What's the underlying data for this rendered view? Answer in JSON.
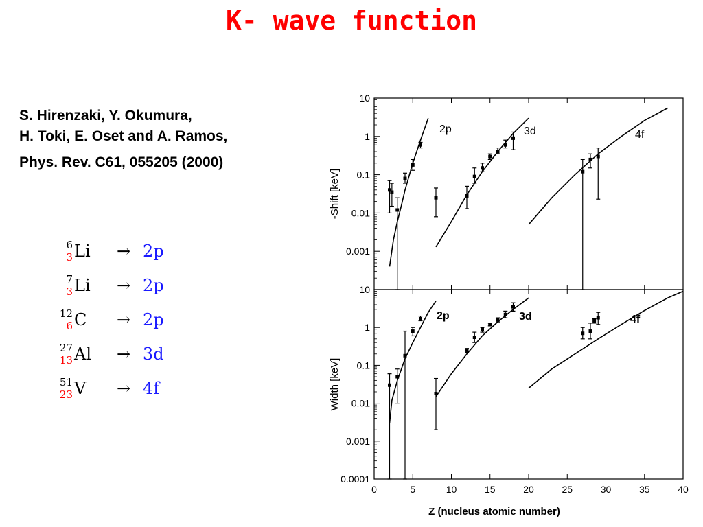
{
  "title": "K- wave function",
  "reference": {
    "line1": "S. Hirenzaki, Y. Okumura,",
    "line2": "H. Toki, E. Oset and A. Ramos,",
    "journal": "Phys. Rev. C61, 055205 (2000)"
  },
  "nuclei": [
    {
      "mass": "6",
      "charge": "3",
      "symbol": "Li",
      "arrow": "→",
      "state": "2p"
    },
    {
      "mass": "7",
      "charge": "3",
      "symbol": "Li",
      "arrow": "→",
      "state": "2p"
    },
    {
      "mass": "12",
      "charge": "6",
      "symbol": "C",
      "arrow": "→",
      "state": "2p"
    },
    {
      "mass": "27",
      "charge": "13",
      "symbol": "Al",
      "arrow": "→",
      "state": "3d"
    },
    {
      "mass": "51",
      "charge": "23",
      "symbol": "V",
      "arrow": "→",
      "state": "4f"
    }
  ],
  "chart_data": [
    {
      "type": "line",
      "panel": "top",
      "ylabel": "-Shift [keV]",
      "xlabel": "",
      "yscale": "log",
      "ylim": [
        0.0001,
        10
      ],
      "xlim": [
        0,
        40
      ],
      "yticks": [
        "10",
        "1",
        "0.1",
        "0.01",
        "0.001"
      ],
      "series": [
        {
          "name": "2p",
          "x": [
            2.0,
            2.5,
            3.0,
            3.5,
            4.0,
            5.0,
            6.0,
            7.0
          ],
          "y": [
            0.0004,
            0.002,
            0.006,
            0.015,
            0.04,
            0.2,
            0.8,
            3.0
          ]
        },
        {
          "name": "3d",
          "x": [
            8,
            10,
            12,
            14,
            16,
            18,
            20
          ],
          "y": [
            0.0013,
            0.006,
            0.03,
            0.12,
            0.4,
            1.2,
            3.0
          ]
        },
        {
          "name": "4f",
          "x": [
            20,
            23,
            26,
            29,
            32,
            35,
            38
          ],
          "y": [
            0.005,
            0.025,
            0.1,
            0.35,
            1.0,
            2.6,
            5.5
          ]
        }
      ],
      "points": [
        {
          "x": 2,
          "y": 0.04,
          "lo": 0.01,
          "hi": 0.07
        },
        {
          "x": 2.3,
          "y": 0.035,
          "lo": 0.015,
          "hi": 0.06
        },
        {
          "x": 3,
          "y": 0.012,
          "lo": 0.0001,
          "hi": 0.025
        },
        {
          "x": 4,
          "y": 0.08,
          "lo": 0.06,
          "hi": 0.11
        },
        {
          "x": 5,
          "y": 0.18,
          "lo": 0.13,
          "hi": 0.25
        },
        {
          "x": 6,
          "y": 0.6,
          "lo": 0.5,
          "hi": 0.7
        },
        {
          "x": 8,
          "y": 0.025,
          "lo": 0.008,
          "hi": 0.045
        },
        {
          "x": 12,
          "y": 0.028,
          "lo": 0.013,
          "hi": 0.05
        },
        {
          "x": 13,
          "y": 0.09,
          "lo": 0.06,
          "hi": 0.15
        },
        {
          "x": 14,
          "y": 0.15,
          "lo": 0.12,
          "hi": 0.2
        },
        {
          "x": 15,
          "y": 0.3,
          "lo": 0.25,
          "hi": 0.35
        },
        {
          "x": 16,
          "y": 0.4,
          "lo": 0.35,
          "hi": 0.5
        },
        {
          "x": 17,
          "y": 0.6,
          "lo": 0.5,
          "hi": 0.8
        },
        {
          "x": 18,
          "y": 0.9,
          "lo": 0.45,
          "hi": 1.3
        },
        {
          "x": 27,
          "y": 0.12,
          "lo": 0.0001,
          "hi": 0.25
        },
        {
          "x": 28,
          "y": 0.25,
          "lo": 0.15,
          "hi": 0.35
        },
        {
          "x": 29,
          "y": 0.3,
          "lo": 0.023,
          "hi": 0.5
        }
      ],
      "curve_labels": [
        "2p",
        "3d",
        "4f"
      ]
    },
    {
      "type": "line",
      "panel": "bottom",
      "ylabel": "Width [keV]",
      "xlabel": "Z (nucleus atomic number)",
      "yscale": "log",
      "ylim": [
        0.0001,
        10
      ],
      "xlim": [
        0,
        40
      ],
      "yticks": [
        "10",
        "1",
        "0.1",
        "0.01",
        "0.001",
        "0.0001"
      ],
      "xticks": [
        "0",
        "5",
        "10",
        "15",
        "20",
        "25",
        "30",
        "35",
        "40"
      ],
      "series": [
        {
          "name": "2p",
          "x": [
            2.0,
            2.3,
            3.0,
            4.0,
            5.0,
            6.0,
            7.0,
            8.0
          ],
          "y": [
            0.003,
            0.012,
            0.04,
            0.15,
            0.4,
            1.0,
            2.5,
            5.0
          ]
        },
        {
          "name": "3d",
          "x": [
            8,
            10,
            12,
            14,
            16,
            18,
            20
          ],
          "y": [
            0.015,
            0.06,
            0.2,
            0.6,
            1.4,
            3.0,
            6.0
          ]
        },
        {
          "name": "4f",
          "x": [
            20,
            23,
            26,
            29,
            32,
            35,
            38,
            40
          ],
          "y": [
            0.025,
            0.08,
            0.2,
            0.5,
            1.2,
            2.8,
            6.0,
            9.0
          ]
        }
      ],
      "points": [
        {
          "x": 2,
          "y": 0.03,
          "lo": 0.0001,
          "hi": 0.06
        },
        {
          "x": 3,
          "y": 0.05,
          "lo": 0.01,
          "hi": 0.08
        },
        {
          "x": 4,
          "y": 0.18,
          "lo": 0.0001,
          "hi": 0.8
        },
        {
          "x": 5,
          "y": 0.8,
          "lo": 0.6,
          "hi": 1.0
        },
        {
          "x": 6,
          "y": 1.7,
          "lo": 1.5,
          "hi": 2.0
        },
        {
          "x": 8,
          "y": 0.018,
          "lo": 0.002,
          "hi": 0.045
        },
        {
          "x": 12,
          "y": 0.25,
          "lo": 0.22,
          "hi": 0.28
        },
        {
          "x": 13,
          "y": 0.55,
          "lo": 0.4,
          "hi": 0.75
        },
        {
          "x": 14,
          "y": 0.9,
          "lo": 0.75,
          "hi": 1.0
        },
        {
          "x": 15,
          "y": 1.2,
          "lo": 1.1,
          "hi": 1.3
        },
        {
          "x": 16,
          "y": 1.6,
          "lo": 1.4,
          "hi": 1.8
        },
        {
          "x": 17,
          "y": 2.2,
          "lo": 1.8,
          "hi": 2.7
        },
        {
          "x": 18,
          "y": 3.5,
          "lo": 2.7,
          "hi": 4.5
        },
        {
          "x": 27,
          "y": 0.7,
          "lo": 0.5,
          "hi": 1.0
        },
        {
          "x": 28,
          "y": 0.8,
          "lo": 0.5,
          "hi": 1.3
        },
        {
          "x": 28.5,
          "y": 1.5,
          "lo": 1.3,
          "hi": 1.7
        },
        {
          "x": 29,
          "y": 1.8,
          "lo": 1.2,
          "hi": 2.5
        }
      ],
      "curve_labels": [
        "2p",
        "3d",
        "4f"
      ]
    }
  ]
}
